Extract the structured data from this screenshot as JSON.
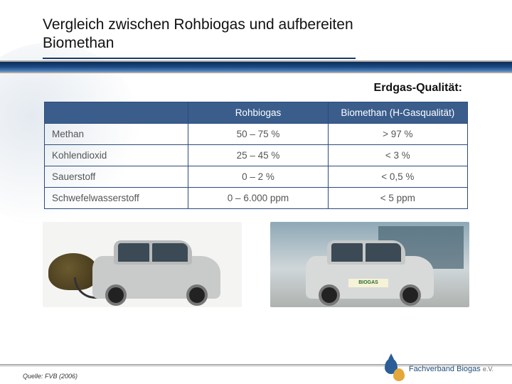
{
  "title_line1": "Vergleich zwischen Rohbiogas und aufbereiten",
  "title_line2": "Biomethan",
  "subtitle": "Erdgas-Qualität:",
  "table": {
    "header_blank": "",
    "header_col1": "Rohbiogas",
    "header_col2": "Biomethan (H-Gasqualität)",
    "rows": [
      {
        "label": "Methan",
        "v1": "50 – 75 %",
        "v2": "> 97 %"
      },
      {
        "label": "Kohlendioxid",
        "v1": "25 – 45 %",
        "v2": "< 3 %"
      },
      {
        "label": "Sauerstoff",
        "v1": "0 – 2 %",
        "v2": "< 0,5 %"
      },
      {
        "label": "Schwefelwasserstoff",
        "v1": "0 – 6.000 ppm",
        "v2": "< 5 ppm"
      }
    ]
  },
  "right_plate": "BIOGAS",
  "source": "Quelle: FVB (2006)",
  "logo_text": "Fachverband Biogas",
  "logo_suffix": "e.V.",
  "colors": {
    "table_border": "#2a4b7a",
    "table_header_bg": "#3a5d8c",
    "table_header_text": "#ffffff",
    "table_cell_text": "#555555",
    "banner_dark": "#0d2b52",
    "banner_light": "#5f8cc2",
    "title_underline": "#1a3a6a"
  }
}
